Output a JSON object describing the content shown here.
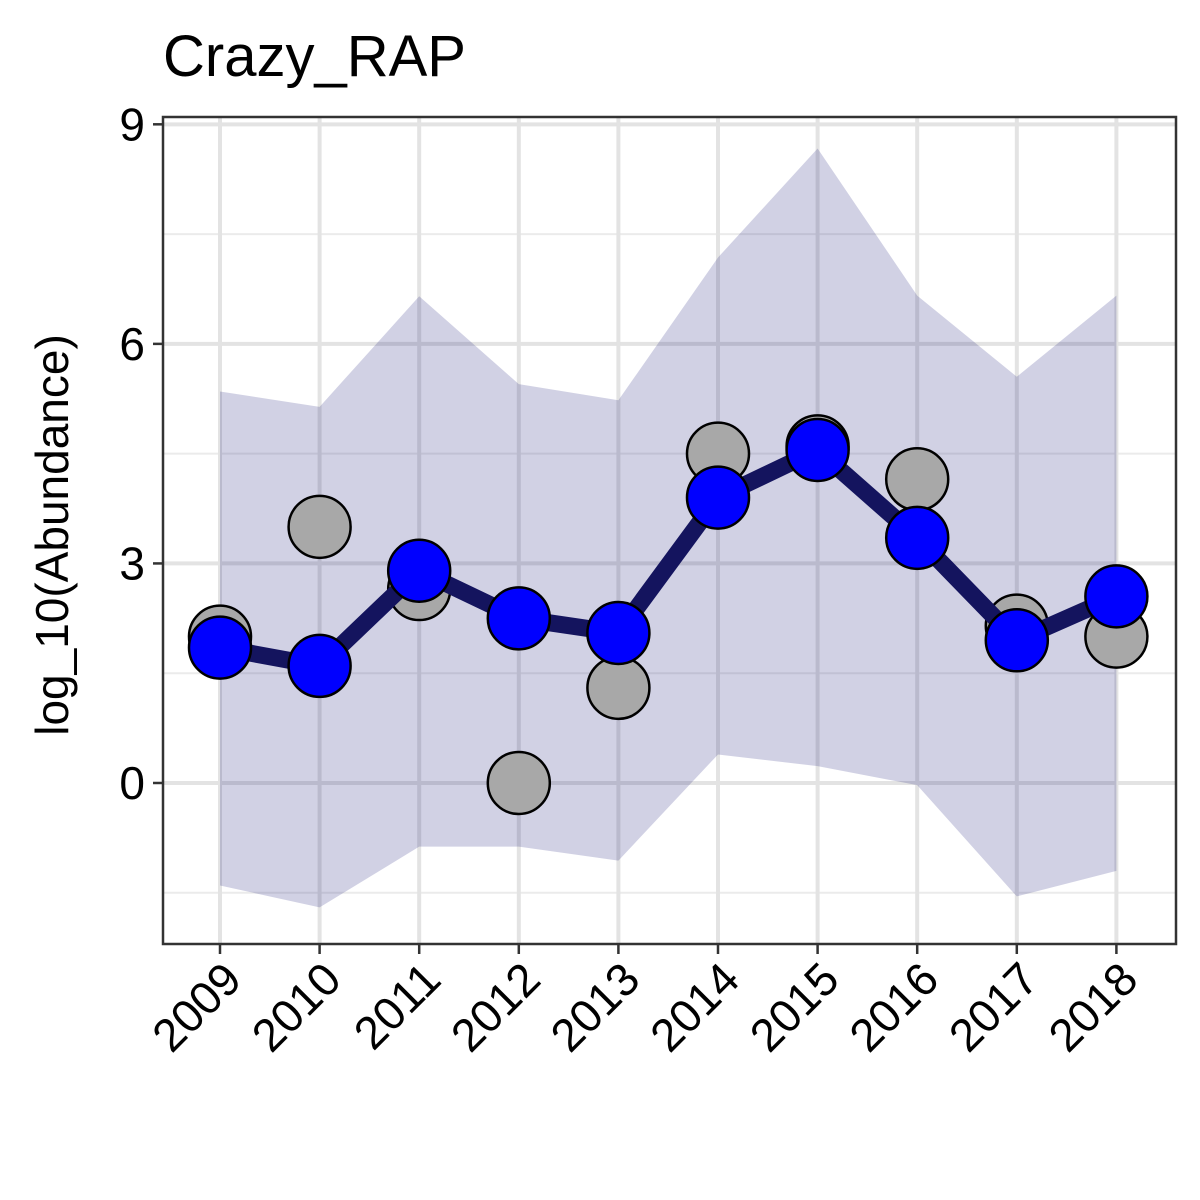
{
  "chart_data": {
    "type": "line",
    "title": "Crazy_RAP",
    "xlabel": "",
    "ylabel": "log_10(Abundance)",
    "x": [
      "2009",
      "2010",
      "2011",
      "2012",
      "2013",
      "2014",
      "2015",
      "2016",
      "2017",
      "2018"
    ],
    "ylim": [
      -2.2,
      9.1
    ],
    "yticks": [
      0,
      3,
      6,
      9
    ],
    "grid": true,
    "series": [
      {
        "kind": "ribbon",
        "lower": [
          -1.4,
          -1.7,
          -0.87,
          -0.87,
          -1.06,
          0.39,
          0.23,
          -0.03,
          -1.55,
          -1.2
        ],
        "upper": [
          5.35,
          5.14,
          6.65,
          5.45,
          5.23,
          7.18,
          8.67,
          6.66,
          5.55,
          6.66
        ],
        "color": "#1a1a78"
      },
      {
        "kind": "observed-points",
        "values": [
          2.0,
          3.5,
          2.65,
          0.0,
          1.3,
          4.5,
          4.6,
          4.15,
          2.15,
          2.0
        ],
        "color": "#a8a8a8"
      },
      {
        "kind": "estimated-line",
        "values": [
          1.85,
          1.6,
          2.9,
          2.25,
          2.05,
          3.9,
          4.55,
          3.35,
          1.95,
          2.55
        ],
        "line_color": "#14145e",
        "point_color": "#0000ff"
      }
    ]
  }
}
